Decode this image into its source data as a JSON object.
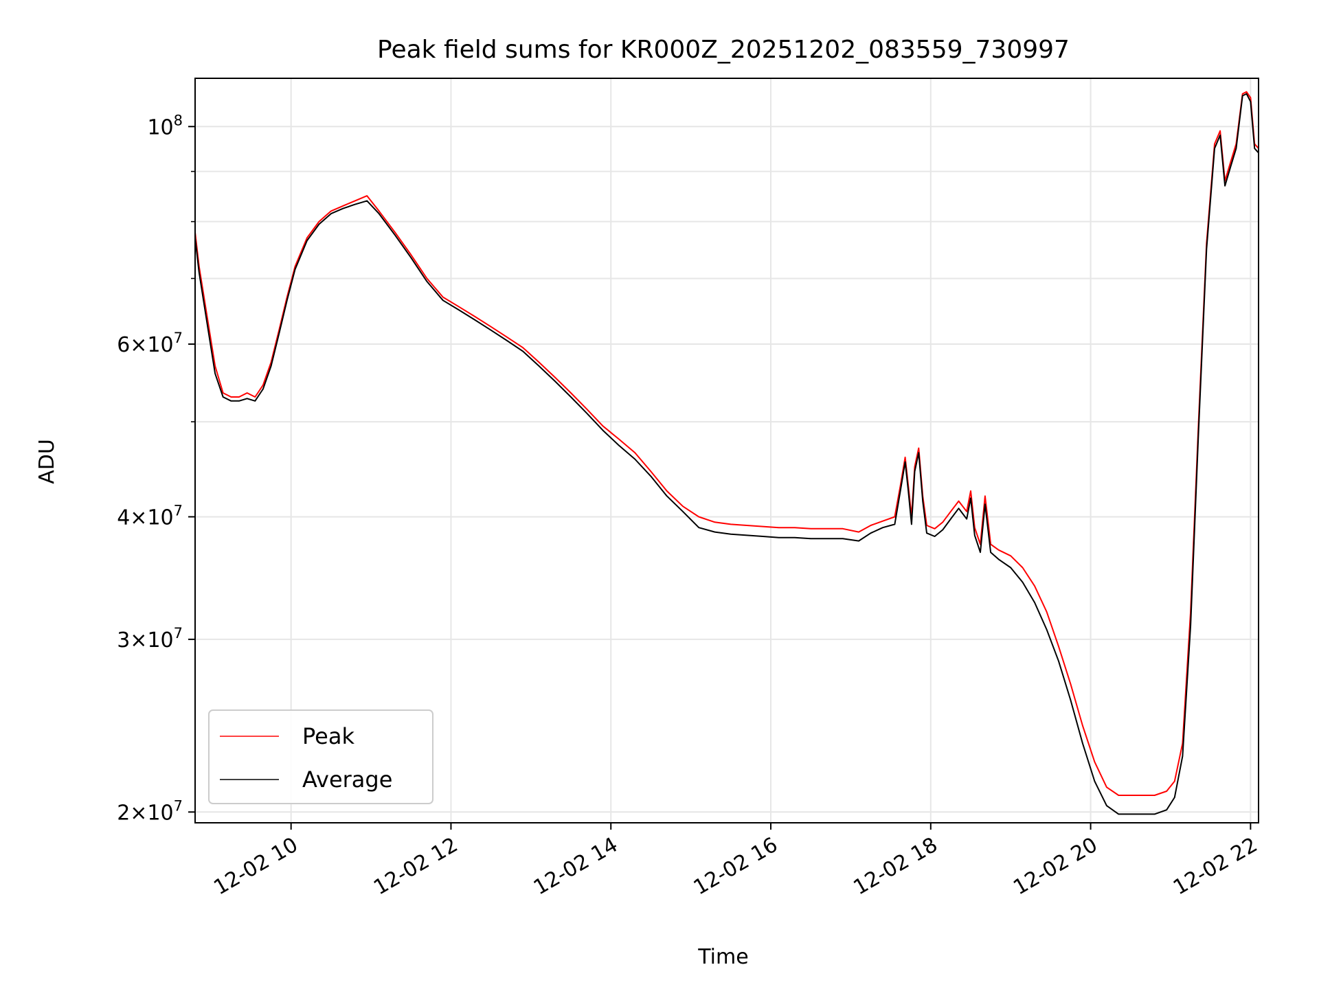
{
  "chart_data": {
    "type": "line",
    "title": "Peak field sums for KR000Z_20251202_083559_730997",
    "xlabel": "Time",
    "ylabel": "ADU",
    "yscale": "log",
    "xlim": [
      8.8,
      22.1
    ],
    "ylim": [
      19500000,
      112000000
    ],
    "grid": true,
    "legend_position": "lower-left",
    "x_unit": "hours of day 2025-12-02",
    "xticks": [
      {
        "value": 10,
        "label": "12-02 10"
      },
      {
        "value": 12,
        "label": "12-02 12"
      },
      {
        "value": 14,
        "label": "12-02 14"
      },
      {
        "value": 16,
        "label": "12-02 16"
      },
      {
        "value": 18,
        "label": "12-02 18"
      },
      {
        "value": 20,
        "label": "12-02 20"
      },
      {
        "value": 22,
        "label": "12-02 22"
      }
    ],
    "yticks_major": [
      {
        "value": 20000000,
        "mantissa": "2",
        "exponent": "7"
      },
      {
        "value": 30000000,
        "mantissa": "3",
        "exponent": "7"
      },
      {
        "value": 40000000,
        "mantissa": "4",
        "exponent": "7"
      },
      {
        "value": 60000000,
        "mantissa": "6",
        "exponent": "7"
      },
      {
        "value": 100000000,
        "mantissa": "",
        "exponent": "8"
      }
    ],
    "yticks_minor": [
      50000000,
      70000000,
      80000000,
      90000000
    ],
    "series": [
      {
        "name": "Peak",
        "color": "#ff0000",
        "x": [
          8.8,
          8.85,
          8.95,
          9.05,
          9.15,
          9.25,
          9.35,
          9.45,
          9.55,
          9.65,
          9.75,
          9.85,
          9.95,
          10.05,
          10.2,
          10.35,
          10.5,
          10.65,
          10.8,
          10.95,
          11.1,
          11.3,
          11.5,
          11.7,
          11.9,
          12.1,
          12.3,
          12.5,
          12.7,
          12.9,
          13.1,
          13.3,
          13.5,
          13.7,
          13.9,
          14.1,
          14.3,
          14.5,
          14.7,
          14.9,
          15.1,
          15.3,
          15.5,
          15.7,
          15.9,
          16.1,
          16.3,
          16.5,
          16.7,
          16.9,
          17.1,
          17.25,
          17.4,
          17.55,
          17.62,
          17.68,
          17.72,
          17.76,
          17.8,
          17.85,
          17.9,
          17.95,
          18.05,
          18.15,
          18.25,
          18.35,
          18.45,
          18.5,
          18.55,
          18.62,
          18.68,
          18.75,
          18.85,
          19.0,
          19.15,
          19.3,
          19.45,
          19.6,
          19.75,
          19.9,
          20.05,
          20.2,
          20.35,
          20.5,
          20.65,
          20.8,
          20.95,
          21.05,
          21.15,
          21.25,
          21.35,
          21.45,
          21.55,
          21.62,
          21.68,
          21.75,
          21.82,
          21.9,
          21.95,
          22.0,
          22.05,
          22.1
        ],
        "y": [
          78000000,
          72000000,
          64000000,
          57000000,
          53500000,
          53000000,
          53000000,
          53500000,
          53000000,
          54500000,
          57500000,
          62000000,
          67000000,
          72000000,
          77000000,
          80000000,
          82000000,
          83000000,
          84000000,
          85000000,
          82000000,
          78000000,
          74000000,
          70000000,
          67000000,
          65500000,
          64000000,
          62500000,
          61000000,
          59500000,
          57500000,
          55500000,
          53500000,
          51500000,
          49500000,
          48000000,
          46500000,
          44500000,
          42500000,
          41000000,
          40000000,
          39500000,
          39300000,
          39200000,
          39100000,
          39000000,
          39000000,
          38900000,
          38900000,
          38900000,
          38600000,
          39200000,
          39600000,
          40000000,
          43000000,
          46000000,
          43000000,
          40000000,
          45000000,
          47000000,
          42000000,
          39200000,
          38900000,
          39500000,
          40500000,
          41500000,
          40500000,
          42500000,
          39000000,
          37500000,
          42000000,
          37500000,
          37000000,
          36500000,
          35500000,
          34000000,
          32000000,
          29500000,
          27000000,
          24500000,
          22500000,
          21200000,
          20800000,
          20800000,
          20800000,
          20800000,
          21000000,
          21500000,
          23500000,
          32000000,
          50000000,
          76000000,
          96000000,
          99000000,
          88000000,
          92000000,
          96000000,
          108000000,
          108500000,
          107000000,
          96000000,
          95000000
        ]
      },
      {
        "name": "Average",
        "color": "#000000",
        "x": [
          8.8,
          8.85,
          8.95,
          9.05,
          9.15,
          9.25,
          9.35,
          9.45,
          9.55,
          9.65,
          9.75,
          9.85,
          9.95,
          10.05,
          10.2,
          10.35,
          10.5,
          10.65,
          10.8,
          10.95,
          11.1,
          11.3,
          11.5,
          11.7,
          11.9,
          12.1,
          12.3,
          12.5,
          12.7,
          12.9,
          13.1,
          13.3,
          13.5,
          13.7,
          13.9,
          14.1,
          14.3,
          14.5,
          14.7,
          14.9,
          15.1,
          15.3,
          15.5,
          15.7,
          15.9,
          16.1,
          16.3,
          16.5,
          16.7,
          16.9,
          17.1,
          17.25,
          17.4,
          17.55,
          17.62,
          17.68,
          17.72,
          17.76,
          17.8,
          17.85,
          17.9,
          17.95,
          18.05,
          18.15,
          18.25,
          18.35,
          18.45,
          18.5,
          18.55,
          18.62,
          18.68,
          18.75,
          18.85,
          19.0,
          19.15,
          19.3,
          19.45,
          19.6,
          19.75,
          19.9,
          20.05,
          20.2,
          20.35,
          20.5,
          20.65,
          20.8,
          20.95,
          21.05,
          21.15,
          21.25,
          21.35,
          21.45,
          21.55,
          21.62,
          21.68,
          21.75,
          21.82,
          21.9,
          21.95,
          22.0,
          22.05,
          22.1
        ],
        "y": [
          77000000,
          71000000,
          63000000,
          56000000,
          53000000,
          52500000,
          52500000,
          52800000,
          52500000,
          54000000,
          57000000,
          61500000,
          66500000,
          71500000,
          76500000,
          79500000,
          81500000,
          82500000,
          83300000,
          84000000,
          81500000,
          77500000,
          73500000,
          69500000,
          66500000,
          65000000,
          63500000,
          62000000,
          60500000,
          59000000,
          57000000,
          55000000,
          53000000,
          51000000,
          49000000,
          47300000,
          45800000,
          44000000,
          42000000,
          40500000,
          39000000,
          38600000,
          38400000,
          38300000,
          38200000,
          38100000,
          38100000,
          38000000,
          38000000,
          38000000,
          37800000,
          38500000,
          39000000,
          39300000,
          42500000,
          45500000,
          42500000,
          39300000,
          44500000,
          46500000,
          41500000,
          38500000,
          38200000,
          38800000,
          39800000,
          40800000,
          39800000,
          41800000,
          38300000,
          36800000,
          41200000,
          36800000,
          36200000,
          35500000,
          34300000,
          32700000,
          30700000,
          28500000,
          26000000,
          23500000,
          21500000,
          20300000,
          19900000,
          19900000,
          19900000,
          19900000,
          20100000,
          20700000,
          22800000,
          31000000,
          49000000,
          75000000,
          95000000,
          98000000,
          87000000,
          91000000,
          95000000,
          107500000,
          108000000,
          106000000,
          95000000,
          94000000
        ]
      }
    ]
  }
}
